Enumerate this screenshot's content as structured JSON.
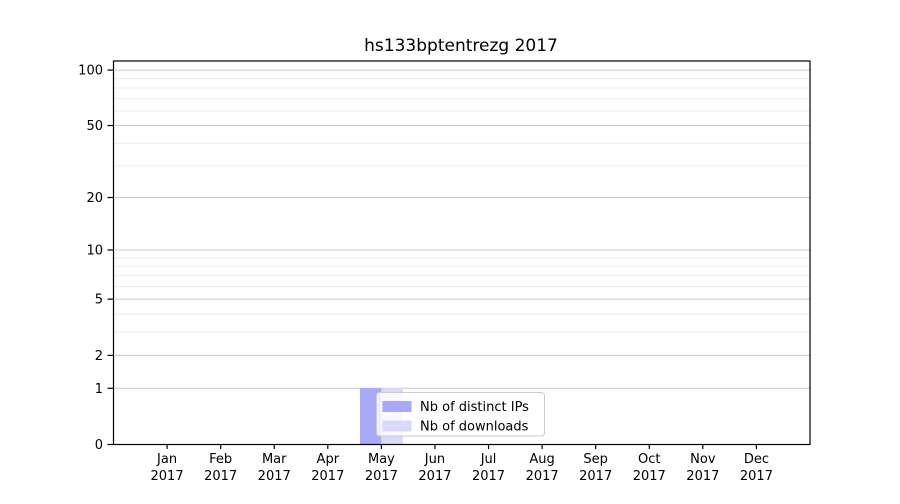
{
  "chart_data": {
    "type": "bar",
    "title": "hs133bptentrezg 2017",
    "categories": [
      "Jan",
      "Feb",
      "Mar",
      "Apr",
      "May",
      "Jun",
      "Jul",
      "Aug",
      "Sep",
      "Oct",
      "Nov",
      "Dec"
    ],
    "category_year": "2017",
    "series": [
      {
        "name": "Nb of distinct IPs",
        "color": "#a9a9f5",
        "values": [
          0,
          0,
          0,
          0,
          1,
          0,
          0,
          0,
          0,
          0,
          0,
          0
        ]
      },
      {
        "name": "Nb of downloads",
        "color": "#dadaf8",
        "values": [
          0,
          0,
          0,
          0,
          1,
          0,
          0,
          0,
          0,
          0,
          0,
          0
        ]
      }
    ],
    "xlabel": "",
    "ylabel": "",
    "yscale": "log1p",
    "ylim": [
      0,
      112
    ],
    "ytick_values": [
      0,
      1,
      2,
      5,
      10,
      20,
      50,
      100
    ],
    "yminor_values": [
      3,
      4,
      6,
      7,
      8,
      9,
      30,
      40,
      60,
      70,
      80,
      90
    ],
    "grid": "horizontal-major-and-minor",
    "legend": {
      "position": "inside-lower-center",
      "entries": [
        "Nb of distinct IPs",
        "Nb of downloads"
      ]
    },
    "colors": {
      "background": "#ffffff",
      "axis": "#000000",
      "major_grid": "#cbcbcb",
      "minor_grid": "#ebebeb",
      "legend_border": "#cccccc",
      "legend_background": "rgba(255,255,255,0.8)"
    }
  }
}
